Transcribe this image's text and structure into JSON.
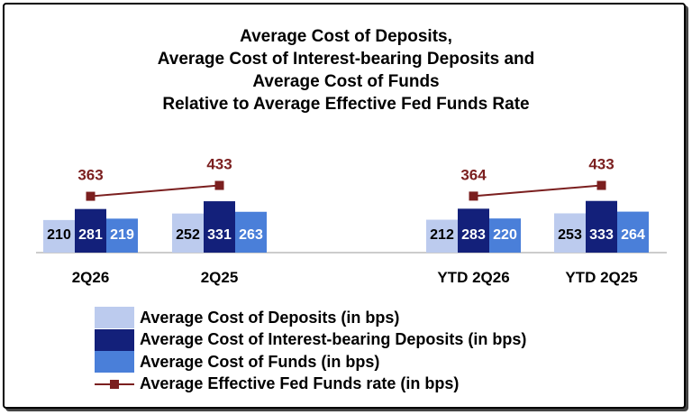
{
  "chart_data": {
    "type": "bar",
    "title_lines": [
      "Average Cost of Deposits,",
      "Average Cost of Interest-bearing Deposits and",
      "Average Cost of Funds",
      "Relative to Average Effective Fed Funds Rate"
    ],
    "categories": [
      "2Q26",
      "2Q25",
      "YTD 2Q26",
      "YTD 2Q25"
    ],
    "series": [
      {
        "name": "Average Cost of Deposits (in bps)",
        "type": "bar",
        "color": "#bccbee",
        "values": [
          210,
          252,
          212,
          253
        ]
      },
      {
        "name": "Average Cost of Interest-bearing Deposits (in bps)",
        "type": "bar",
        "color": "#13207a",
        "values": [
          281,
          331,
          283,
          333
        ]
      },
      {
        "name": "Average Cost of Funds (in bps)",
        "type": "bar",
        "color": "#4a7fd9",
        "values": [
          219,
          263,
          220,
          264
        ]
      },
      {
        "name": "Average Effective Fed Funds rate (in bps)",
        "type": "line",
        "color": "#7b1f1f",
        "values": [
          363,
          433,
          364,
          433
        ]
      }
    ],
    "line_groups": [
      [
        0,
        1
      ],
      [
        2,
        3
      ]
    ],
    "legend_position": "bottom-left",
    "grid": false
  }
}
